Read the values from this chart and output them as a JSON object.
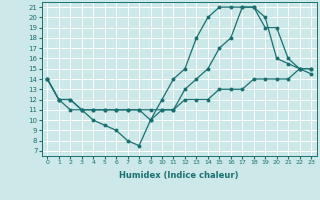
{
  "xlabel": "Humidex (Indice chaleur)",
  "xlim": [
    -0.5,
    23.5
  ],
  "ylim": [
    6.5,
    21.5
  ],
  "yticks": [
    7,
    8,
    9,
    10,
    11,
    12,
    13,
    14,
    15,
    16,
    17,
    18,
    19,
    20,
    21
  ],
  "xticks": [
    0,
    1,
    2,
    3,
    4,
    5,
    6,
    7,
    8,
    9,
    10,
    11,
    12,
    13,
    14,
    15,
    16,
    17,
    18,
    19,
    20,
    21,
    22,
    23
  ],
  "bg_color": "#cce8e8",
  "line_color": "#1a7070",
  "grid_color": "#ffffff",
  "series": [
    {
      "x": [
        0,
        1,
        2,
        3,
        4,
        5,
        6,
        7,
        8,
        9,
        10,
        11,
        12,
        13,
        14,
        15,
        16,
        17,
        18,
        19,
        20,
        21,
        22,
        23
      ],
      "y": [
        14,
        12,
        12,
        11,
        11,
        11,
        11,
        11,
        11,
        11,
        11,
        11,
        12,
        12,
        12,
        13,
        13,
        13,
        14,
        14,
        14,
        14,
        15,
        15
      ]
    },
    {
      "x": [
        0,
        1,
        2,
        3,
        4,
        5,
        6,
        7,
        8,
        9,
        10,
        11,
        12,
        13,
        14,
        15,
        16,
        17,
        18,
        19,
        20,
        21,
        22,
        23
      ],
      "y": [
        14,
        12,
        11,
        11,
        10,
        9.5,
        9,
        8,
        7.5,
        10,
        12,
        14,
        15,
        18,
        20,
        21,
        21,
        21,
        21,
        20,
        16,
        15.5,
        15,
        15
      ]
    },
    {
      "x": [
        0,
        1,
        2,
        3,
        4,
        5,
        6,
        7,
        8,
        9,
        10,
        11,
        12,
        13,
        14,
        15,
        16,
        17,
        18,
        19,
        20,
        21,
        22,
        23
      ],
      "y": [
        14,
        12,
        12,
        11,
        11,
        11,
        11,
        11,
        11,
        10,
        11,
        11,
        13,
        14,
        15,
        17,
        18,
        21,
        21,
        19,
        19,
        16,
        15,
        14.5
      ]
    }
  ]
}
